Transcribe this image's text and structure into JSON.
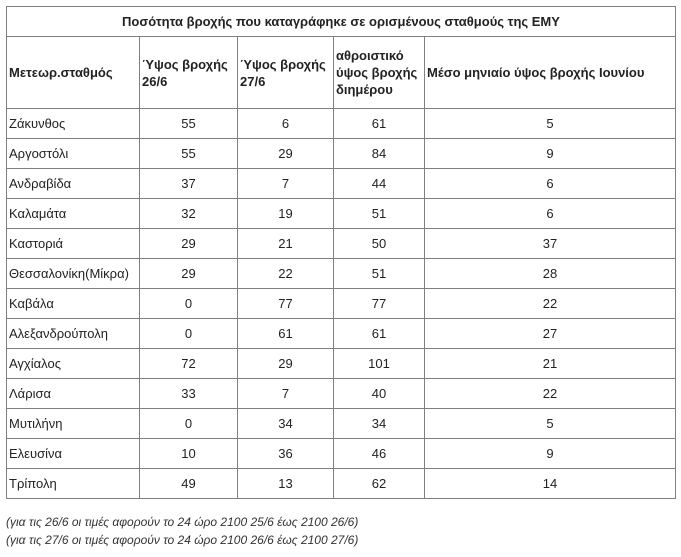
{
  "title": "Ποσότητα βροχής που καταγράφηκε σε ορισμένους σταθμούς της ΕΜΥ",
  "headers": {
    "station": "Μετεωρ.σταθμός",
    "h2_line1": "Ύψος βροχής",
    "h2_line2": "26/6",
    "h3_line1": "Ύψος βροχής",
    "h3_line2": "27/6",
    "h4_line1": "αθροιστικό",
    "h4_line2": "ύψος βροχής",
    "h4_line3": "διημέρου",
    "h5": "Μέσο μηνιαίο ύψος βροχής Ιουνίου"
  },
  "rows": [
    {
      "station": "Ζάκυνθος",
      "d26": "55",
      "d27": "6",
      "total": "61",
      "june_avg": "5"
    },
    {
      "station": "Αργοστόλι",
      "d26": "55",
      "d27": "29",
      "total": "84",
      "june_avg": "9"
    },
    {
      "station": "Ανδραβίδα",
      "d26": "37",
      "d27": "7",
      "total": "44",
      "june_avg": "6"
    },
    {
      "station": "Καλαμάτα",
      "d26": "32",
      "d27": "19",
      "total": "51",
      "june_avg": "6"
    },
    {
      "station": "Καστοριά",
      "d26": "29",
      "d27": "21",
      "total": "50",
      "june_avg": "37"
    },
    {
      "station": "Θεσσαλονίκη(Μίκρα)",
      "d26": "29",
      "d27": "22",
      "total": "51",
      "june_avg": "28"
    },
    {
      "station": "Καβάλα",
      "d26": "0",
      "d27": "77",
      "total": "77",
      "june_avg": "22"
    },
    {
      "station": "Αλεξανδρούπολη",
      "d26": "0",
      "d27": "61",
      "total": "61",
      "june_avg": "27"
    },
    {
      "station": "Αγχίαλος",
      "d26": "72",
      "d27": "29",
      "total": "101",
      "june_avg": "21"
    },
    {
      "station": "Λάρισα",
      "d26": "33",
      "d27": "7",
      "total": "40",
      "june_avg": "22"
    },
    {
      "station": "Μυτιλήνη",
      "d26": "0",
      "d27": "34",
      "total": "34",
      "june_avg": "5"
    },
    {
      "station": "Ελευσίνα",
      "d26": "10",
      "d27": "36",
      "total": "46",
      "june_avg": "9"
    },
    {
      "station": "Τρίπολη",
      "d26": "49",
      "d27": "13",
      "total": "62",
      "june_avg": "14"
    }
  ],
  "notes": [
    "(για τις 26/6 οι τιμές αφορούν το 24 ώρο 2100 25/6 έως 2100 26/6)",
    "(για τις 27/6 οι τιμές αφορούν το 24 ώρο 2100 26/6 έως 2100 27/6)"
  ]
}
